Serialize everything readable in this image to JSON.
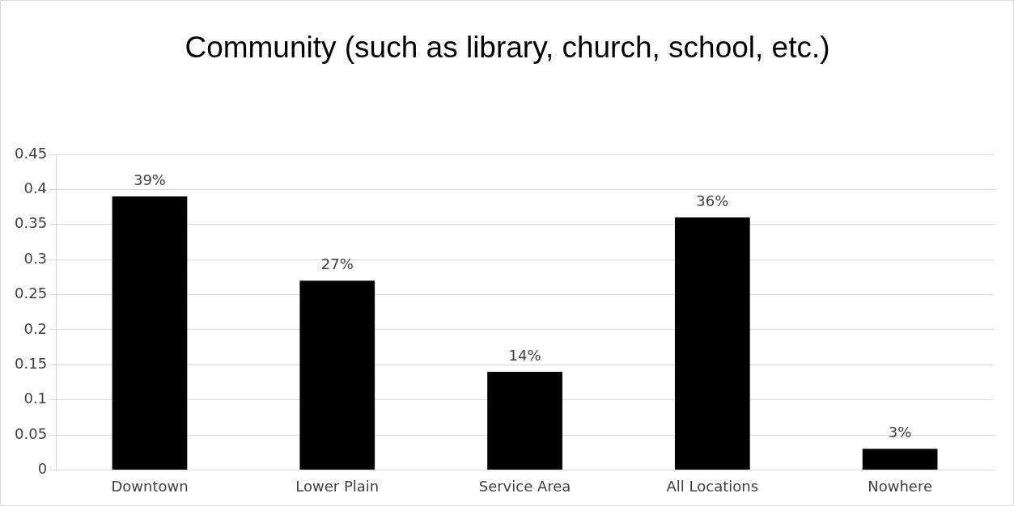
{
  "chart_data": {
    "type": "bar",
    "title": "Community (such as library, church, school, etc.)",
    "categories": [
      "Downtown",
      "Lower Plain",
      "Service Area",
      "All Locations",
      "Nowhere"
    ],
    "values": [
      0.39,
      0.27,
      0.14,
      0.36,
      0.03
    ],
    "value_labels": [
      "39%",
      "27%",
      "14%",
      "36%",
      "3%"
    ],
    "color": "#000000",
    "ylim": [
      0,
      0.45
    ],
    "yticks": [
      0,
      0.05,
      0.1,
      0.15,
      0.2,
      0.25,
      0.3,
      0.35,
      0.4,
      0.45
    ],
    "grid": "y",
    "legend": false
  }
}
